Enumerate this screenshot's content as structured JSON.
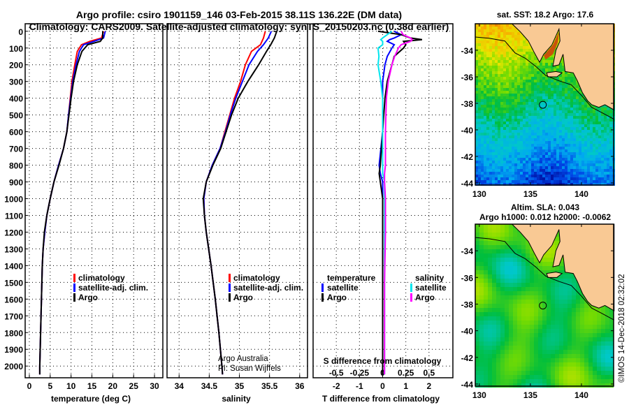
{
  "title_line1": "Argo profile: csiro 1901159_146 03-Feb-2015 38.11S 136.22E (DM data)",
  "title_line2": "Climatology: CARS2009. Satellite-adjusted climatology: synTS_20150203.nc (0.38d earlier)",
  "timestamp": "©IMOS 14-Dec-2018 02:32:02",
  "credit_line1": "Argo Australia",
  "credit_line2": "PI: Susan Wijffels",
  "colors": {
    "climatology": "#ff0000",
    "satellite": "#0000ff",
    "argo": "#000000",
    "sal_satellite": "#00e5ee",
    "sal_argo": "#ff00ff",
    "land": "#f9c994"
  },
  "chart_data": [
    {
      "type": "line",
      "title": "",
      "xlabel": "temperature (deg C)",
      "ylabel": "",
      "xlim": [
        -1,
        32
      ],
      "ylim": [
        2070,
        -45
      ],
      "xticks": [
        0,
        5,
        10,
        15,
        20,
        25,
        30
      ],
      "yticks": [
        0,
        100,
        200,
        300,
        400,
        500,
        600,
        700,
        800,
        900,
        1000,
        1100,
        1200,
        1300,
        1400,
        1500,
        1600,
        1700,
        1800,
        1900,
        2000
      ],
      "legend": [
        "climatology",
        "satellite-adj. clim.",
        "Argo"
      ],
      "depth": [
        0,
        40,
        60,
        80,
        120,
        200,
        300,
        400,
        500,
        600,
        700,
        800,
        900,
        1000,
        1100,
        1200,
        1300,
        1400,
        1600,
        1800,
        2000,
        2050
      ],
      "series": [
        {
          "name": "climatology",
          "color": "#ff0000",
          "values": [
            17.8,
            17.3,
            14.5,
            12.5,
            11.5,
            10.9,
            10.2,
            9.8,
            9.4,
            9.0,
            8.2,
            7.0,
            5.9,
            5.0,
            4.2,
            3.7,
            3.3,
            3.1,
            2.9,
            2.7,
            2.5,
            2.5
          ]
        },
        {
          "name": "satellite-adj. clim.",
          "color": "#0000ff",
          "values": [
            18.2,
            17.8,
            15.5,
            13.0,
            12.0,
            11.2,
            10.4,
            9.9,
            9.4,
            9.0,
            8.2,
            7.0,
            5.9,
            5.0,
            4.2,
            3.7,
            3.3,
            3.1,
            2.9,
            2.7,
            2.5,
            2.5
          ]
        },
        {
          "name": "Argo",
          "color": "#000000",
          "values": [
            17.6,
            17.6,
            17.0,
            14.0,
            12.6,
            11.5,
            10.6,
            10.0,
            9.5,
            9.0,
            8.2,
            7.1,
            5.9,
            5.0,
            4.2,
            3.6,
            3.3,
            3.1,
            2.9,
            2.7,
            2.5,
            2.5
          ]
        }
      ]
    },
    {
      "type": "line",
      "title": "",
      "xlabel": "salinity",
      "ylabel": "",
      "xlim": [
        33.8,
        36.13
      ],
      "ylim": [
        2070,
        -45
      ],
      "xticks": [
        34,
        34.5,
        35,
        35.5,
        36
      ],
      "legend": [
        "climatology",
        "satellite-adj. clim.",
        "Argo"
      ],
      "depth": [
        0,
        40,
        80,
        120,
        200,
        300,
        400,
        500,
        600,
        700,
        800,
        900,
        1000,
        1100,
        1200,
        1400,
        1600,
        1800,
        2000,
        2050
      ],
      "series": [
        {
          "name": "climatology",
          "color": "#ff0000",
          "values": [
            35.43,
            35.4,
            35.35,
            35.2,
            35.1,
            35.02,
            34.92,
            34.84,
            34.76,
            34.68,
            34.55,
            34.45,
            34.41,
            34.42,
            34.45,
            34.53,
            34.6,
            34.66,
            34.71,
            34.72
          ]
        },
        {
          "name": "satellite-adj. clim.",
          "color": "#0000ff",
          "values": [
            35.53,
            35.48,
            35.4,
            35.3,
            35.16,
            35.05,
            34.94,
            34.85,
            34.77,
            34.68,
            34.55,
            34.45,
            34.41,
            34.42,
            34.45,
            34.53,
            34.6,
            34.66,
            34.71,
            34.72
          ]
        },
        {
          "name": "Argo",
          "color": "#000000",
          "values": [
            35.62,
            35.58,
            35.52,
            35.45,
            35.32,
            35.14,
            34.98,
            34.87,
            34.78,
            34.69,
            34.56,
            34.45,
            34.4,
            34.42,
            34.45,
            34.53,
            34.6,
            34.66,
            34.71,
            34.72
          ]
        }
      ]
    },
    {
      "type": "line",
      "title": "",
      "xlabel": "T difference from climatology",
      "xlabel2": "S difference from climatology",
      "xlim": [
        -3,
        3.03
      ],
      "ylim": [
        2070,
        -45
      ],
      "xticks": [
        -2,
        -1,
        0,
        1,
        2
      ],
      "xticks2": [
        -0.5,
        -0.25,
        0,
        0.25,
        0.5
      ],
      "legend_temp_title": "temperature",
      "legend_sal_title": "salinity",
      "legend": [
        "satellite",
        "Argo",
        "satellite",
        "Argo"
      ],
      "depth": [
        0,
        20,
        40,
        50,
        60,
        80,
        100,
        150,
        200,
        300,
        400,
        600,
        800,
        850,
        900,
        1000,
        1200,
        1500,
        2000,
        2050
      ],
      "series": [
        {
          "name": "T satellite",
          "axis": "T",
          "color": "#0000ff",
          "values": [
            0.5,
            0.8,
            0.5,
            0.3,
            0.2,
            0.5,
            0.4,
            0.2,
            0.1,
            0.0,
            0.0,
            0.0,
            -0.15,
            -0.1,
            0.0,
            0.0,
            0.0,
            0.0,
            0.0,
            0.0
          ]
        },
        {
          "name": "T Argo",
          "axis": "T",
          "color": "#000000",
          "values": [
            -0.2,
            0.8,
            1.2,
            1.7,
            0.9,
            1.0,
            0.9,
            0.5,
            0.4,
            0.2,
            0.1,
            0.0,
            -0.1,
            -0.15,
            -0.1,
            0.0,
            0.0,
            0.0,
            0.0,
            0.0
          ]
        },
        {
          "name": "S satellite",
          "axis": "S",
          "color": "#00e5ee",
          "values": [
            0.1,
            0.05,
            0.0,
            -0.02,
            0.0,
            0.0,
            -0.05,
            -0.04,
            -0.05,
            -0.02,
            0.0,
            0.0,
            0.0,
            0.0,
            0.02,
            0.02,
            0.02,
            0.02,
            0.02,
            0.02
          ]
        },
        {
          "name": "S Argo",
          "axis": "S",
          "color": "#ff00ff",
          "values": [
            0.2,
            0.22,
            0.3,
            0.32,
            0.3,
            0.2,
            0.17,
            0.13,
            0.1,
            0.06,
            0.04,
            0.03,
            0.03,
            0.02,
            0.02,
            0.03,
            0.03,
            0.02,
            0.02,
            0.02
          ]
        }
      ]
    },
    {
      "type": "heatmap",
      "title": "sat. SST: 18.2 Argo: 17.6",
      "xlim": [
        129.6,
        143.15
      ],
      "ylim": [
        -44.16,
        -32
      ],
      "xticks": [
        130,
        135,
        140
      ],
      "yticks": [
        -34,
        -36,
        -38,
        -40,
        -42,
        -44
      ],
      "float_position": [
        136.22,
        -38.11
      ]
    },
    {
      "type": "heatmap",
      "title": "Altim. SLA: 0.043",
      "subtitle": "Argo h1000: 0.012 h2000: -0.0062",
      "xlim": [
        129.6,
        143.15
      ],
      "ylim": [
        -44.16,
        -32
      ],
      "xticks": [
        130,
        135,
        140
      ],
      "yticks": [
        -34,
        -36,
        -38,
        -40,
        -42,
        -44
      ],
      "float_position": [
        136.22,
        -38.11
      ]
    }
  ]
}
